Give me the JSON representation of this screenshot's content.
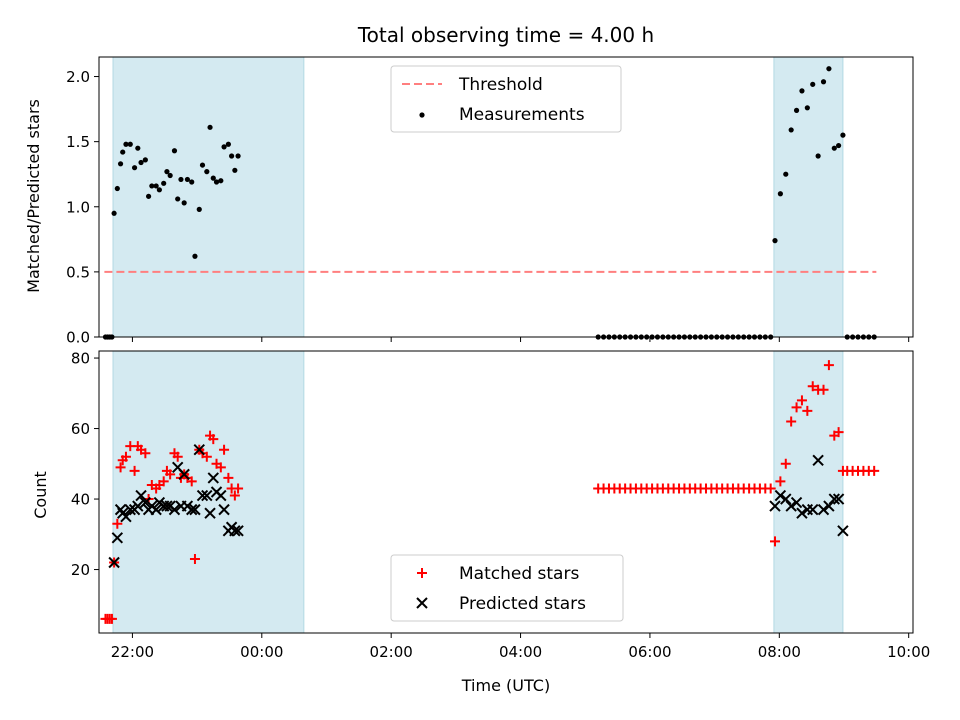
{
  "chart_data": [
    {
      "type": "scatter",
      "title": "Total observing time = 4.00 h",
      "xlabel": "",
      "ylabel": "Matched/Predicted stars",
      "ylim": [
        0,
        2.15
      ],
      "xlim": [
        "21:29",
        "10:04"
      ],
      "x_ticks": [
        "22:00",
        "00:00",
        "02:00",
        "04:00",
        "06:00",
        "08:00",
        "10:00"
      ],
      "y_ticks": [
        "0.0",
        "0.5",
        "1.0",
        "1.5",
        "2.0"
      ],
      "legend_position": "upper center",
      "shaded_intervals": [
        [
          "21:42",
          "00:39"
        ],
        [
          "07:55",
          "08:59"
        ]
      ],
      "threshold": {
        "name": "Threshold",
        "value": 0.5,
        "x_range": [
          "21:34",
          "09:30"
        ],
        "color": "#ff7f7f",
        "style": "dashed"
      },
      "series": [
        {
          "name": "Measurements",
          "marker": "dot",
          "color": "#000000",
          "points": [
            [
              "21:35",
              0
            ],
            [
              "21:37",
              0
            ],
            [
              "21:39",
              0
            ],
            [
              "21:41",
              0
            ],
            [
              "21:43",
              0.95
            ],
            [
              "21:46",
              1.14
            ],
            [
              "21:49",
              1.33
            ],
            [
              "21:51",
              1.42
            ],
            [
              "21:54",
              1.48
            ],
            [
              "21:58",
              1.48
            ],
            [
              "22:02",
              1.3
            ],
            [
              "22:05",
              1.45
            ],
            [
              "22:08",
              1.34
            ],
            [
              "22:12",
              1.36
            ],
            [
              "22:15",
              1.08
            ],
            [
              "22:18",
              1.16
            ],
            [
              "22:22",
              1.16
            ],
            [
              "22:25",
              1.13
            ],
            [
              "22:29",
              1.18
            ],
            [
              "22:32",
              1.27
            ],
            [
              "22:35",
              1.24
            ],
            [
              "22:39",
              1.43
            ],
            [
              "22:42",
              1.06
            ],
            [
              "22:45",
              1.21
            ],
            [
              "22:48",
              1.03
            ],
            [
              "22:51",
              1.21
            ],
            [
              "22:55",
              1.19
            ],
            [
              "22:58",
              0.62
            ],
            [
              "23:02",
              0.98
            ],
            [
              "23:05",
              1.32
            ],
            [
              "23:09",
              1.27
            ],
            [
              "23:12",
              1.61
            ],
            [
              "23:15",
              1.22
            ],
            [
              "23:18",
              1.19
            ],
            [
              "23:22",
              1.2
            ],
            [
              "23:25",
              1.46
            ],
            [
              "23:29",
              1.48
            ],
            [
              "23:32",
              1.39
            ],
            [
              "23:35",
              1.28
            ],
            [
              "23:38",
              1.39
            ],
            [
              "05:12",
              0
            ],
            [
              "05:17",
              0
            ],
            [
              "05:22",
              0
            ],
            [
              "05:27",
              0
            ],
            [
              "05:32",
              0
            ],
            [
              "05:37",
              0
            ],
            [
              "05:42",
              0
            ],
            [
              "05:47",
              0
            ],
            [
              "05:52",
              0
            ],
            [
              "05:57",
              0
            ],
            [
              "06:02",
              0
            ],
            [
              "06:07",
              0
            ],
            [
              "06:12",
              0
            ],
            [
              "06:17",
              0
            ],
            [
              "06:22",
              0
            ],
            [
              "06:27",
              0
            ],
            [
              "06:32",
              0
            ],
            [
              "06:37",
              0
            ],
            [
              "06:42",
              0
            ],
            [
              "06:47",
              0
            ],
            [
              "06:52",
              0
            ],
            [
              "06:57",
              0
            ],
            [
              "07:02",
              0
            ],
            [
              "07:07",
              0
            ],
            [
              "07:12",
              0
            ],
            [
              "07:17",
              0
            ],
            [
              "07:22",
              0
            ],
            [
              "07:27",
              0
            ],
            [
              "07:32",
              0
            ],
            [
              "07:37",
              0
            ],
            [
              "07:42",
              0
            ],
            [
              "07:47",
              0
            ],
            [
              "07:52",
              0
            ],
            [
              "07:56",
              0.74
            ],
            [
              "08:01",
              1.1
            ],
            [
              "08:06",
              1.25
            ],
            [
              "08:11",
              1.59
            ],
            [
              "08:16",
              1.74
            ],
            [
              "08:21",
              1.89
            ],
            [
              "08:26",
              1.76
            ],
            [
              "08:31",
              1.94
            ],
            [
              "08:36",
              1.39
            ],
            [
              "08:41",
              1.96
            ],
            [
              "08:46",
              2.06
            ],
            [
              "08:51",
              1.45
            ],
            [
              "08:55",
              1.47
            ],
            [
              "08:59",
              1.55
            ],
            [
              "09:03",
              0
            ],
            [
              "09:08",
              0
            ],
            [
              "09:13",
              0
            ],
            [
              "09:18",
              0
            ],
            [
              "09:23",
              0
            ],
            [
              "09:28",
              0
            ]
          ]
        }
      ]
    },
    {
      "type": "scatter",
      "title": "",
      "xlabel": "Time (UTC)",
      "ylabel": "Count",
      "ylim": [
        2,
        82
      ],
      "xlim": [
        "21:29",
        "10:04"
      ],
      "x_ticks": [
        "22:00",
        "00:00",
        "02:00",
        "04:00",
        "06:00",
        "08:00",
        "10:00"
      ],
      "y_ticks": [
        "20",
        "40",
        "60",
        "80"
      ],
      "legend_position": "lower center",
      "shaded_intervals": [
        [
          "21:42",
          "00:39"
        ],
        [
          "07:55",
          "08:59"
        ]
      ],
      "series": [
        {
          "name": "Matched stars",
          "marker": "plus",
          "color": "#ff0000",
          "points": [
            [
              "21:35",
              6
            ],
            [
              "21:37",
              6
            ],
            [
              "21:39",
              6
            ],
            [
              "21:41",
              6
            ],
            [
              "21:43",
              22
            ],
            [
              "21:46",
              33
            ],
            [
              "21:49",
              49
            ],
            [
              "21:51",
              51
            ],
            [
              "21:54",
              52
            ],
            [
              "21:58",
              55
            ],
            [
              "22:02",
              48
            ],
            [
              "22:05",
              55
            ],
            [
              "22:08",
              54
            ],
            [
              "22:12",
              53
            ],
            [
              "22:15",
              40
            ],
            [
              "22:18",
              44
            ],
            [
              "22:22",
              43
            ],
            [
              "22:25",
              44
            ],
            [
              "22:29",
              45
            ],
            [
              "22:32",
              48
            ],
            [
              "22:35",
              47
            ],
            [
              "22:39",
              53
            ],
            [
              "22:42",
              52
            ],
            [
              "22:45",
              46
            ],
            [
              "22:48",
              47
            ],
            [
              "22:51",
              46
            ],
            [
              "22:55",
              45
            ],
            [
              "22:58",
              23
            ],
            [
              "23:02",
              54
            ],
            [
              "23:05",
              53
            ],
            [
              "23:09",
              52
            ],
            [
              "23:12",
              58
            ],
            [
              "23:15",
              57
            ],
            [
              "23:18",
              50
            ],
            [
              "23:22",
              49
            ],
            [
              "23:25",
              54
            ],
            [
              "23:29",
              46
            ],
            [
              "23:32",
              43
            ],
            [
              "23:35",
              41
            ],
            [
              "23:38",
              43
            ],
            [
              "05:12",
              43
            ],
            [
              "05:17",
              43
            ],
            [
              "05:22",
              43
            ],
            [
              "05:27",
              43
            ],
            [
              "05:32",
              43
            ],
            [
              "05:37",
              43
            ],
            [
              "05:42",
              43
            ],
            [
              "05:47",
              43
            ],
            [
              "05:52",
              43
            ],
            [
              "05:57",
              43
            ],
            [
              "06:02",
              43
            ],
            [
              "06:07",
              43
            ],
            [
              "06:12",
              43
            ],
            [
              "06:17",
              43
            ],
            [
              "06:22",
              43
            ],
            [
              "06:27",
              43
            ],
            [
              "06:32",
              43
            ],
            [
              "06:37",
              43
            ],
            [
              "06:42",
              43
            ],
            [
              "06:47",
              43
            ],
            [
              "06:52",
              43
            ],
            [
              "06:57",
              43
            ],
            [
              "07:02",
              43
            ],
            [
              "07:07",
              43
            ],
            [
              "07:12",
              43
            ],
            [
              "07:17",
              43
            ],
            [
              "07:22",
              43
            ],
            [
              "07:27",
              43
            ],
            [
              "07:32",
              43
            ],
            [
              "07:37",
              43
            ],
            [
              "07:42",
              43
            ],
            [
              "07:47",
              43
            ],
            [
              "07:52",
              43
            ],
            [
              "07:56",
              28
            ],
            [
              "08:01",
              45
            ],
            [
              "08:06",
              50
            ],
            [
              "08:11",
              62
            ],
            [
              "08:16",
              66
            ],
            [
              "08:21",
              68
            ],
            [
              "08:26",
              65
            ],
            [
              "08:31",
              72
            ],
            [
              "08:36",
              71
            ],
            [
              "08:41",
              71
            ],
            [
              "08:46",
              78
            ],
            [
              "08:51",
              58
            ],
            [
              "08:55",
              59
            ],
            [
              "08:59",
              48
            ],
            [
              "09:03",
              48
            ],
            [
              "09:08",
              48
            ],
            [
              "09:13",
              48
            ],
            [
              "09:18",
              48
            ],
            [
              "09:23",
              48
            ],
            [
              "09:28",
              48
            ]
          ]
        },
        {
          "name": "Predicted stars",
          "marker": "x",
          "color": "#000000",
          "points": [
            [
              "21:43",
              22
            ],
            [
              "21:46",
              29
            ],
            [
              "21:49",
              37
            ],
            [
              "21:51",
              36
            ],
            [
              "21:54",
              35
            ],
            [
              "21:58",
              37
            ],
            [
              "22:02",
              37
            ],
            [
              "22:05",
              38
            ],
            [
              "22:08",
              41
            ],
            [
              "22:12",
              39
            ],
            [
              "22:15",
              37
            ],
            [
              "22:18",
              38
            ],
            [
              "22:22",
              37
            ],
            [
              "22:25",
              39
            ],
            [
              "22:29",
              38
            ],
            [
              "22:32",
              38
            ],
            [
              "22:35",
              38
            ],
            [
              "22:39",
              37
            ],
            [
              "22:42",
              49
            ],
            [
              "22:45",
              38
            ],
            [
              "22:48",
              47
            ],
            [
              "22:51",
              38
            ],
            [
              "22:55",
              37
            ],
            [
              "22:58",
              37
            ],
            [
              "23:02",
              54
            ],
            [
              "23:05",
              41
            ],
            [
              "23:09",
              41
            ],
            [
              "23:12",
              36
            ],
            [
              "23:15",
              46
            ],
            [
              "23:18",
              42
            ],
            [
              "23:22",
              41
            ],
            [
              "23:25",
              37
            ],
            [
              "23:29",
              31
            ],
            [
              "23:32",
              32
            ],
            [
              "23:35",
              31
            ],
            [
              "23:38",
              31
            ],
            [
              "07:56",
              38
            ],
            [
              "08:01",
              41
            ],
            [
              "08:06",
              40
            ],
            [
              "08:11",
              38
            ],
            [
              "08:16",
              39
            ],
            [
              "08:21",
              36
            ],
            [
              "08:26",
              37
            ],
            [
              "08:31",
              37
            ],
            [
              "08:36",
              51
            ],
            [
              "08:41",
              37
            ],
            [
              "08:46",
              38
            ],
            [
              "08:51",
              40
            ],
            [
              "08:55",
              40
            ],
            [
              "08:59",
              31
            ]
          ]
        }
      ]
    }
  ]
}
